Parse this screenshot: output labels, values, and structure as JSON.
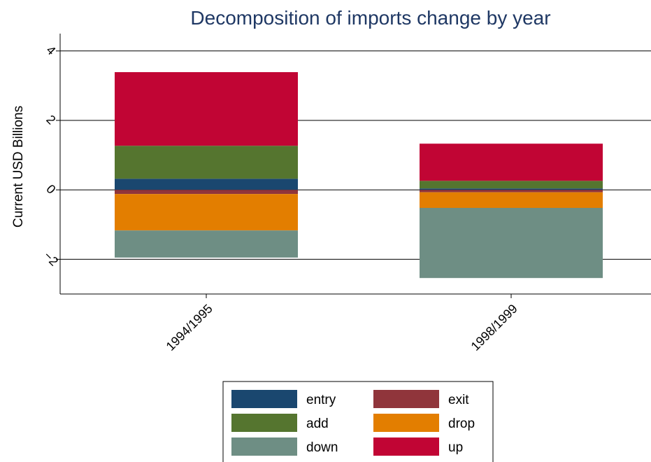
{
  "chart_data": {
    "type": "bar",
    "stacked": true,
    "title": "Decomposition of imports change by year",
    "xlabel": "",
    "ylabel": "Current USD Billions",
    "categories": [
      "1994/1995",
      "1998/1999"
    ],
    "ylim": [
      -3,
      4.5
    ],
    "yticks": [
      -2,
      0,
      2,
      4
    ],
    "grid": true,
    "legend_position": "bottom",
    "series": [
      {
        "name": "entry",
        "color": "#1a476f",
        "values": [
          0.32,
          0.04
        ]
      },
      {
        "name": "exit",
        "color": "#90353b",
        "values": [
          -0.12,
          -0.07
        ]
      },
      {
        "name": "add",
        "color": "#55752f",
        "values": [
          0.95,
          0.22
        ]
      },
      {
        "name": "drop",
        "color": "#e37e00",
        "values": [
          -1.05,
          -0.45
        ]
      },
      {
        "name": "down",
        "color": "#6e8e84",
        "values": [
          -0.78,
          -2.02
        ]
      },
      {
        "name": "up",
        "color": "#c10534",
        "values": [
          2.12,
          1.07
        ]
      }
    ],
    "positive_stack_order": [
      "entry",
      "add",
      "up"
    ],
    "negative_stack_order": [
      "exit",
      "drop",
      "down"
    ]
  }
}
